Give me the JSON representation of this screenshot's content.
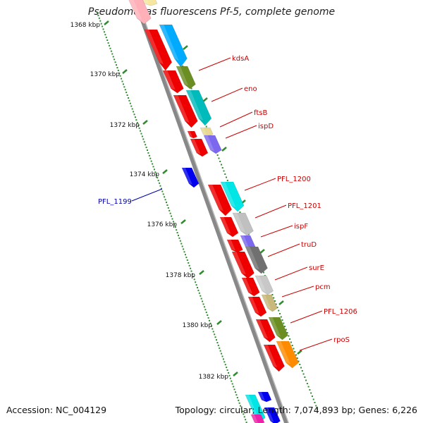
{
  "title": "Pseudomonas fluorescens Pf-5, complete genome",
  "footer": {
    "accession": "Accession: NC_004129",
    "stats": "Topology: circular; Length: 7,074,893 bp; Genes: 6,226"
  },
  "colors": {
    "backbone": "#888888",
    "scale_ticks": "#2e8b2e",
    "gene_label": "#cc0000",
    "reverse_label": "#0000aa"
  },
  "chart_data": {
    "type": "genome-map",
    "title": "Pseudomonas fluorescens Pf-5, complete genome",
    "scale_unit": "kbp",
    "scale_labels": [
      "1368 kbp",
      "1370 kbp",
      "1372 kbp",
      "1374 kbp",
      "1376 kbp",
      "1378 kbp",
      "1380 kbp",
      "1382 kbp"
    ],
    "genes": [
      {
        "label": "kdsA",
        "strand": "+",
        "color": "#00aaff"
      },
      {
        "label": "eno",
        "strand": "+",
        "color": "#6b8e23"
      },
      {
        "label": "ftsB",
        "strand": "+",
        "color": "#00bbbb"
      },
      {
        "label": "ispD",
        "strand": "+",
        "color": "#e8d890"
      },
      {
        "label": "PFL_1199",
        "strand": "-",
        "color": "#0000ee"
      },
      {
        "label": "PFL_1200",
        "strand": "+",
        "color": "#00e5e5"
      },
      {
        "label": "PFL_1201",
        "strand": "+",
        "color": "#c0c0c0"
      },
      {
        "label": "ispF",
        "strand": "+",
        "color": "#7b68ee"
      },
      {
        "label": "truD",
        "strand": "+",
        "color": "#707070"
      },
      {
        "label": "surE",
        "strand": "+",
        "color": "#c8c8c8"
      },
      {
        "label": "pcm",
        "strand": "+",
        "color": "#c8b87a"
      },
      {
        "label": "PFL_1206",
        "strand": "+",
        "color": "#6b8e23"
      },
      {
        "label": "rpoS",
        "strand": "+",
        "color": "#ff8c00"
      }
    ]
  }
}
